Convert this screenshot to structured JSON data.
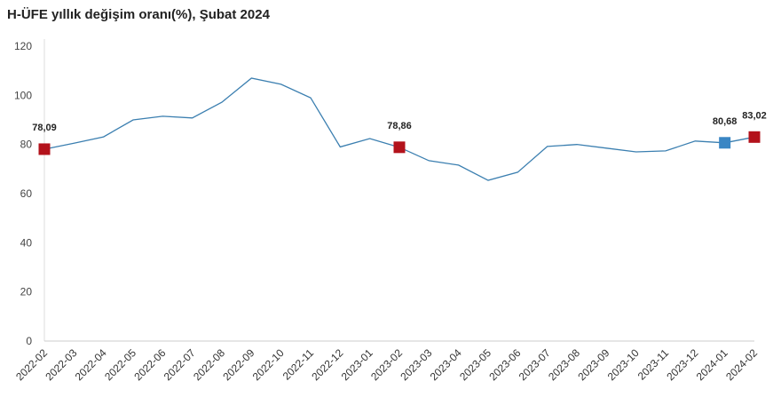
{
  "chart_data": {
    "type": "line",
    "title": "H-ÜFE yıllık değişim oranı(%), Şubat 2024",
    "xlabel": "",
    "ylabel": "",
    "ylim": [
      0,
      120
    ],
    "yticks": [
      0,
      20,
      40,
      60,
      80,
      100,
      120
    ],
    "grid": false,
    "line_color": "#3b7fb0",
    "categories": [
      "2022-02",
      "2022-03",
      "2022-04",
      "2022-05",
      "2022-06",
      "2022-07",
      "2022-08",
      "2022-09",
      "2022-10",
      "2022-11",
      "2022-12",
      "2023-01",
      "2023-02",
      "2023-03",
      "2023-04",
      "2023-05",
      "2023-06",
      "2023-07",
      "2023-08",
      "2023-09",
      "2023-10",
      "2023-11",
      "2023-12",
      "2024-01",
      "2024-02"
    ],
    "series": [
      {
        "name": "H-ÜFE yıllık değişim oranı(%)",
        "values": [
          78.09,
          80.5,
          83.1,
          90.0,
          91.5,
          90.8,
          97.2,
          107.0,
          104.5,
          99.0,
          79.0,
          82.4,
          78.86,
          73.4,
          71.6,
          65.4,
          68.7,
          79.2,
          80.0,
          78.5,
          77.0,
          77.4,
          81.4,
          80.68,
          83.02
        ]
      }
    ],
    "highlights": [
      {
        "index": 0,
        "label": "78,09",
        "color": "#b3121b"
      },
      {
        "index": 12,
        "label": "78,86",
        "color": "#b3121b"
      },
      {
        "index": 23,
        "label": "80,68",
        "color": "#3a86c4"
      },
      {
        "index": 24,
        "label": "83,02",
        "color": "#b3121b"
      }
    ]
  }
}
